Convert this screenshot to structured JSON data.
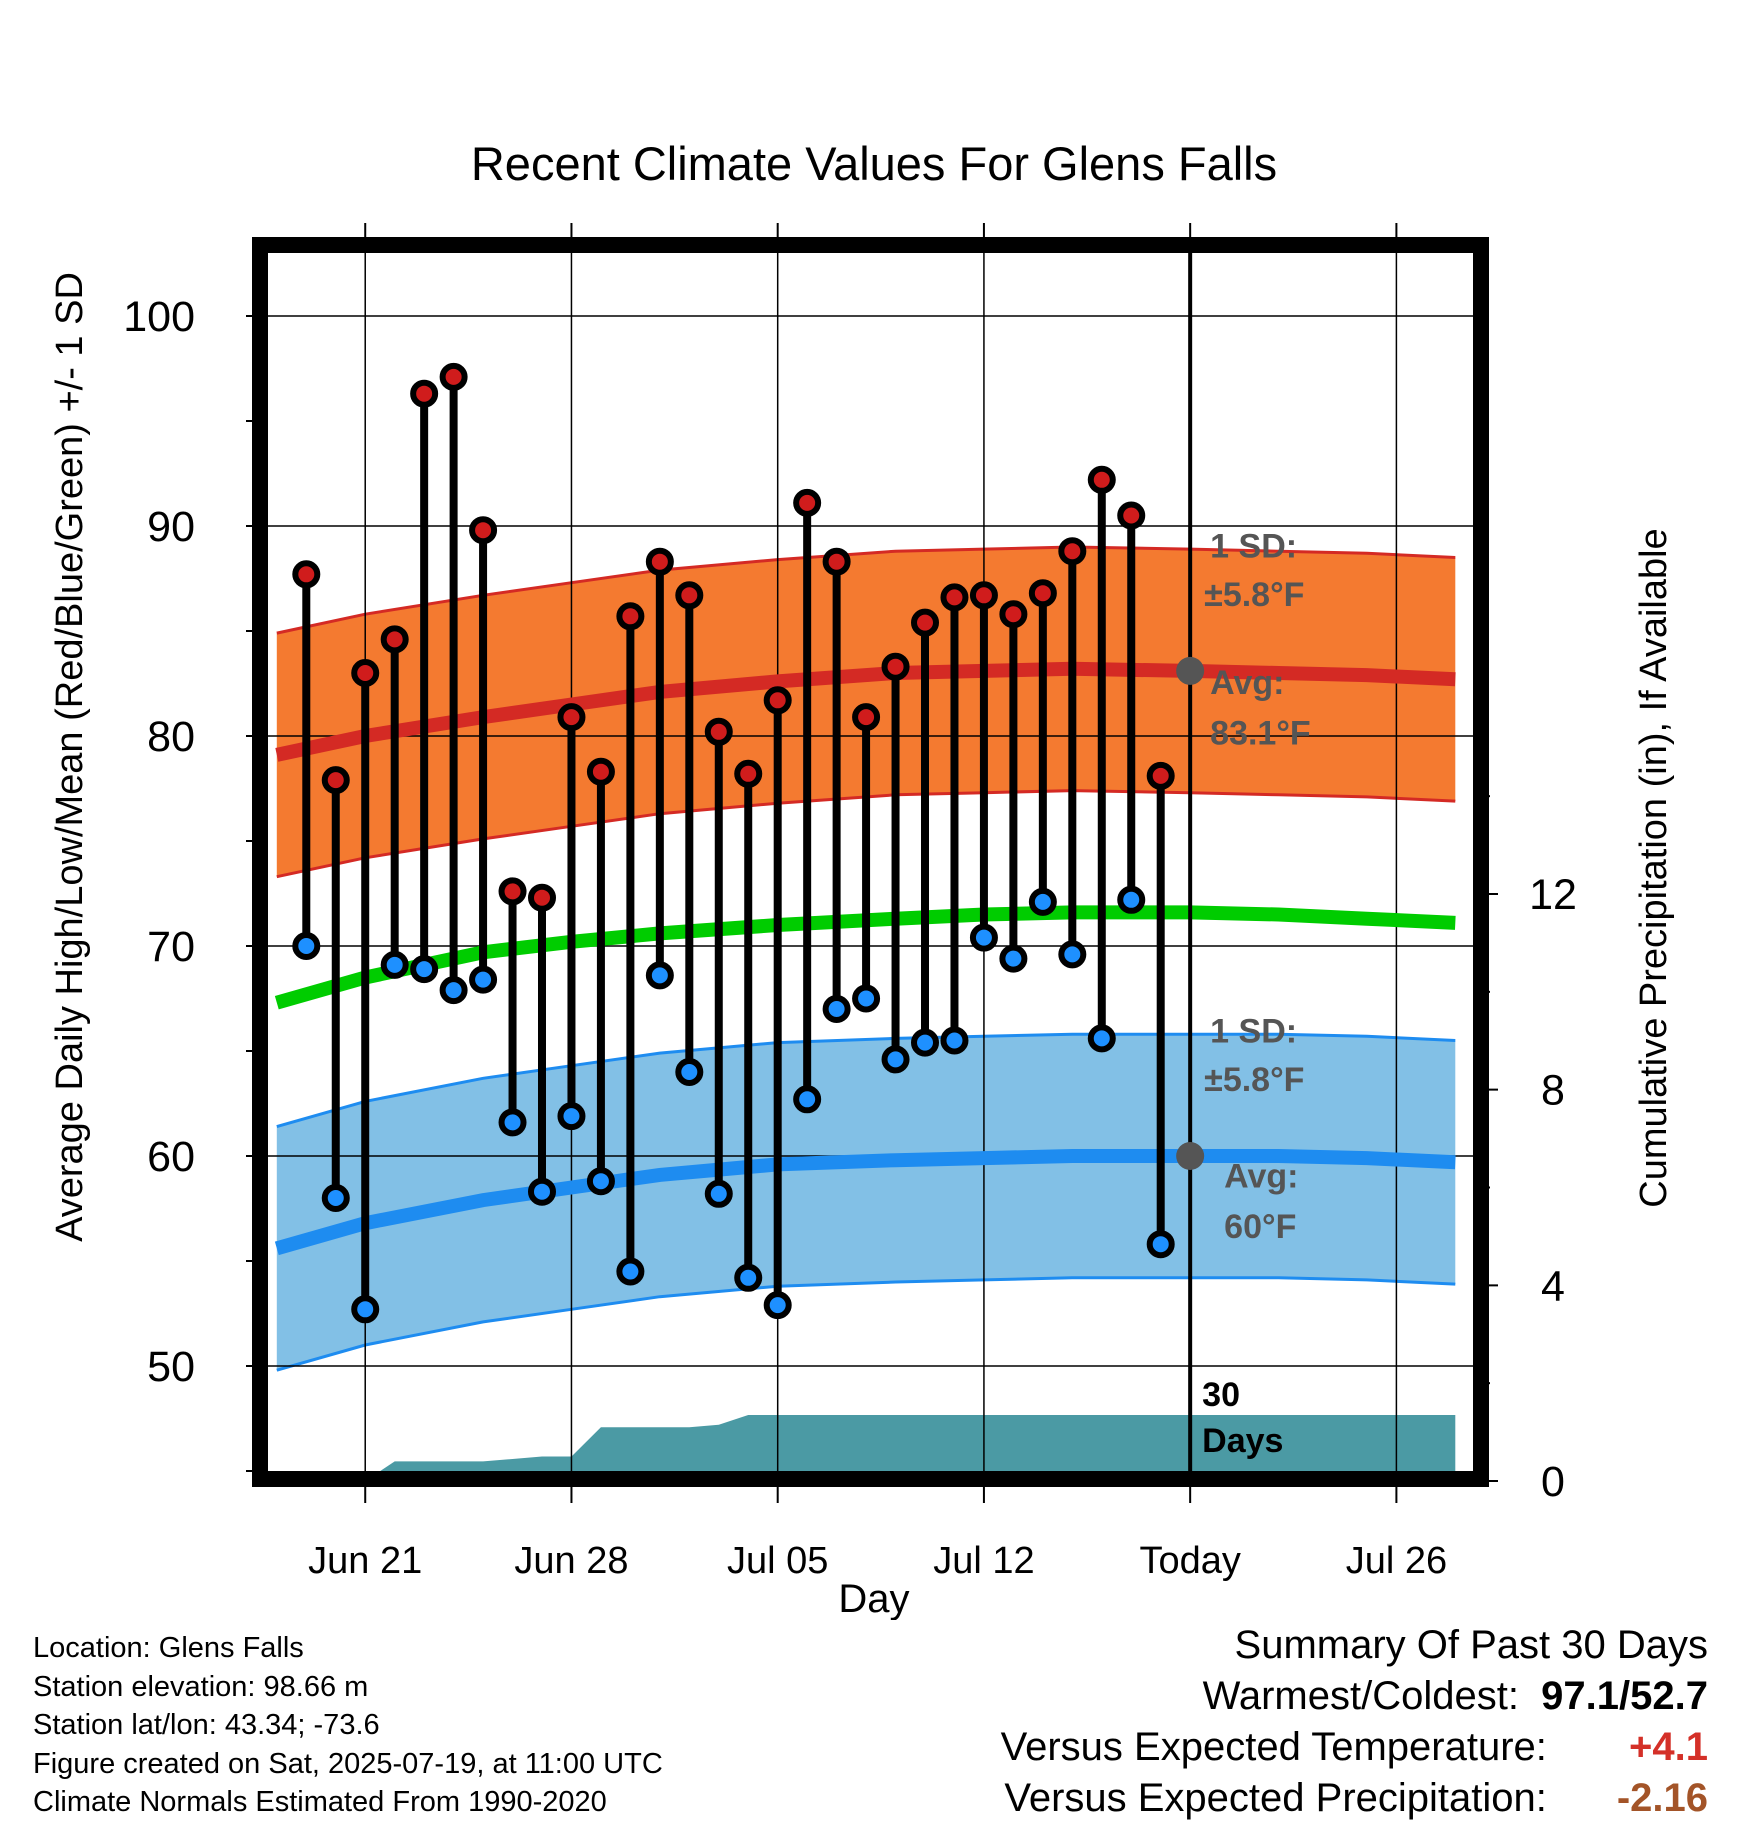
{
  "chart_data": {
    "type": "line",
    "title": "Recent Climate Values For Glens Falls",
    "xlabel": "Day",
    "ylabel_left": "Average Daily High/Low/Mean (Red/Blue/Green) +/- 1 SD",
    "ylabel_right": "Cumulative Precipitation (in), If Available",
    "x_ticks": [
      {
        "day": 0,
        "label": "Jun 21"
      },
      {
        "day": 7,
        "label": "Jun 28"
      },
      {
        "day": 14,
        "label": "Jul 05"
      },
      {
        "day": 21,
        "label": "Jul 12"
      },
      {
        "day": 28,
        "label": "Today"
      },
      {
        "day": 35,
        "label": "Jul 26"
      }
    ],
    "xlim": [
      -3.3,
      37.6
    ],
    "ylim_left": [
      45,
      103
    ],
    "y_ticks_left": [
      50,
      60,
      70,
      80,
      90,
      100
    ],
    "y_ticks_right": [
      0,
      4,
      8,
      12
    ],
    "grid": true,
    "today_day": 28,
    "daily": {
      "days": [
        -2,
        -1,
        0,
        1,
        2,
        3,
        4,
        5,
        6,
        7,
        8,
        9,
        10,
        11,
        12,
        13,
        14,
        15,
        16,
        17,
        18,
        19,
        20,
        21,
        22,
        23,
        24,
        25,
        26,
        27
      ],
      "highs": [
        87.7,
        77.9,
        83.0,
        84.6,
        96.3,
        97.1,
        89.8,
        72.6,
        72.3,
        80.9,
        78.3,
        85.7,
        88.3,
        86.7,
        80.2,
        78.2,
        81.7,
        91.1,
        88.3,
        80.9,
        83.3,
        85.4,
        86.6,
        86.7,
        85.8,
        86.8,
        88.8,
        92.2,
        90.5,
        78.1
      ],
      "lows": [
        70.0,
        58.0,
        52.7,
        69.1,
        68.9,
        67.9,
        68.4,
        61.6,
        58.3,
        61.9,
        58.8,
        54.5,
        68.6,
        64.0,
        58.2,
        54.2,
        52.9,
        62.7,
        67.0,
        67.5,
        64.6,
        65.4,
        65.5,
        70.4,
        69.4,
        72.1,
        69.6,
        65.6,
        72.2,
        55.8
      ]
    },
    "normals": {
      "days": [
        -3,
        0,
        4,
        7,
        10,
        14,
        18,
        21,
        24,
        28,
        31,
        34,
        37
      ],
      "high_avg": [
        79.1,
        80.0,
        80.9,
        81.5,
        82.1,
        82.6,
        83.0,
        83.1,
        83.2,
        83.1,
        83.0,
        82.9,
        82.7
      ],
      "low_avg": [
        55.6,
        56.8,
        57.9,
        58.5,
        59.1,
        59.6,
        59.8,
        59.9,
        60.0,
        60.0,
        60.0,
        59.9,
        59.7
      ],
      "mean_avg": [
        67.3,
        68.5,
        69.7,
        70.2,
        70.6,
        71.0,
        71.3,
        71.5,
        71.6,
        71.6,
        71.5,
        71.3,
        71.1
      ],
      "sd": 5.8
    },
    "precipitation": {
      "days": [
        -3,
        0,
        1,
        3,
        4,
        5,
        6,
        7,
        8,
        9,
        10,
        11,
        12,
        13,
        14,
        15,
        16,
        17,
        18,
        19,
        20,
        21,
        22,
        23,
        24,
        25,
        26,
        27,
        28,
        29,
        30,
        31,
        32,
        33,
        34,
        35,
        36,
        37
      ],
      "cumulative_in": [
        0,
        0,
        0.4,
        0.4,
        0.4,
        0.45,
        0.5,
        0.5,
        1.1,
        1.1,
        1.1,
        1.1,
        1.15,
        1.35,
        1.35,
        1.35,
        1.35,
        1.35,
        1.35,
        1.35,
        1.35,
        1.35,
        1.35,
        1.35,
        1.35,
        1.35,
        1.35,
        1.35,
        1.35,
        1.35,
        1.35,
        1.35,
        1.35,
        1.35,
        1.35,
        1.35,
        1.35,
        1.35
      ]
    },
    "annotations": {
      "high_sd_line1": "1 SD:",
      "high_sd_line2": "±5.8°F",
      "high_avg_line1": "Avg:",
      "high_avg_line2": "83.1°F",
      "low_sd_line1": "1 SD:",
      "low_sd_line2": "±5.8°F",
      "low_avg_line1": "Avg:",
      "low_avg_line2": "60°F",
      "days_line1": "30",
      "days_line2": "Days"
    },
    "colors": {
      "high_band": "#f47a30",
      "high_line": "#d42a24",
      "low_band": "#82c0e6",
      "low_line": "#1e8cf0",
      "mean_line": "#00cc00",
      "precip": "#4b9aa4",
      "high_dot": "#d01c1c",
      "low_dot": "#1e90ff",
      "annotation": "#555555",
      "positive": "#d43028",
      "negative": "#a35428"
    }
  },
  "info": {
    "location": "Location: Glens Falls",
    "elevation": "Station elevation: 98.66 m",
    "latlon": "Station lat/lon: 43.34; -73.6",
    "created": "Figure created on Sat, 2025-07-19, at 11:00 UTC",
    "normals": "Climate Normals Estimated From 1990-2020"
  },
  "summary": {
    "title": "Summary Of Past 30 Days",
    "warmest_label": "Warmest/Coldest:",
    "warmest_value": "97.1/52.7",
    "temp_label": "Versus Expected Temperature:",
    "temp_value": "+4.1",
    "precip_label": "Versus Expected Precipitation:",
    "precip_value": "-2.16"
  }
}
